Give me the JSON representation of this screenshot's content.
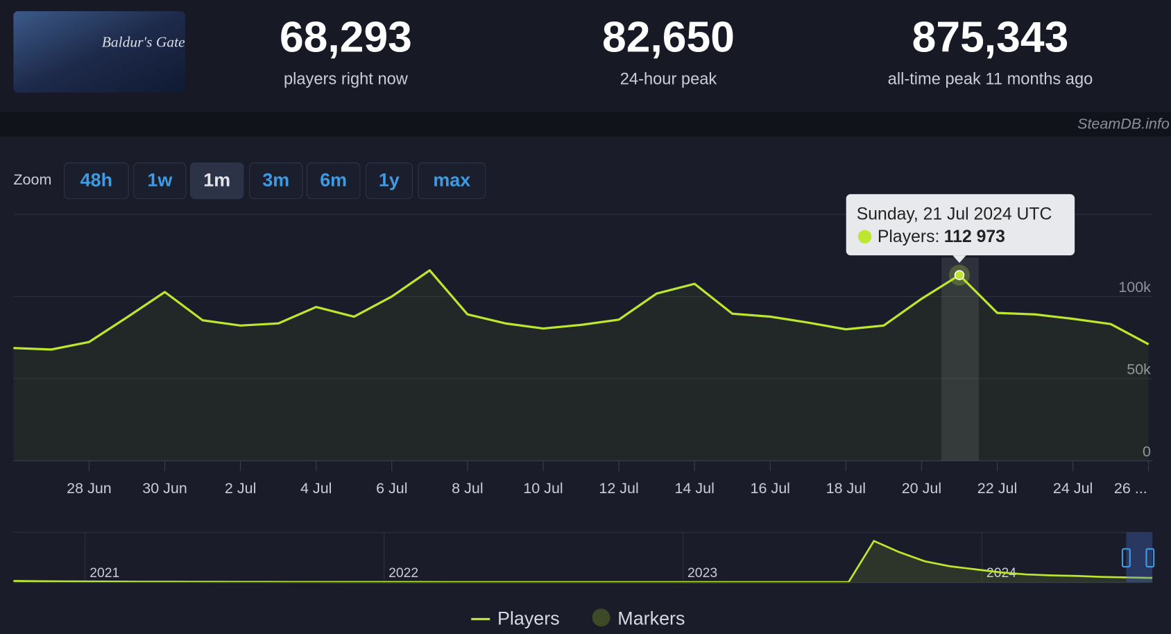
{
  "header": {
    "game_logo": "Baldur's Gate",
    "stats": [
      {
        "value": "68,293",
        "label": "players right now"
      },
      {
        "value": "82,650",
        "label": "24-hour peak"
      },
      {
        "value": "875,343",
        "label": "all-time peak 11 months ago"
      }
    ]
  },
  "watermark": "SteamDB.info",
  "zoom": {
    "label": "Zoom",
    "buttons": [
      "48h",
      "1w",
      "1m",
      "3m",
      "6m",
      "1y",
      "max"
    ],
    "selected": 2
  },
  "chart_data": {
    "type": "line",
    "categories": [
      null,
      null,
      "28 Jun",
      null,
      "30 Jun",
      null,
      "2 Jul",
      null,
      "4 Jul",
      null,
      "6 Jul",
      null,
      "8 Jul",
      null,
      "10 Jul",
      null,
      "12 Jul",
      null,
      "14 Jul",
      null,
      "16 Jul",
      null,
      "18 Jul",
      null,
      "20 Jul",
      null,
      "22 Jul",
      null,
      "24 Jul",
      null,
      "26 ..."
    ],
    "series": [
      {
        "name": "Players",
        "color": "#bde62f",
        "values": [
          68600,
          67700,
          72300,
          87300,
          102700,
          85500,
          82300,
          83600,
          93600,
          87700,
          100000,
          115900,
          89100,
          83600,
          80500,
          82700,
          85900,
          101800,
          107700,
          89500,
          87700,
          84100,
          80000,
          82300,
          98600,
          112973,
          90000,
          89100,
          86400,
          83200,
          70900
        ],
        "value_labels": [
          null,
          null,
          null,
          null,
          null,
          null,
          null,
          null,
          null,
          null,
          null,
          null,
          null,
          null,
          null,
          null,
          null,
          null,
          null,
          null,
          null,
          null,
          null,
          null,
          null,
          "112 973",
          null,
          null,
          null,
          null,
          null
        ]
      }
    ],
    "tooltip": {
      "title": "Sunday, 21 Jul 2024 UTC",
      "label": "Players:"
    },
    "ylim": [
      0,
      150000
    ],
    "yticks": [
      0,
      {
        "value": 50000,
        "label": "50k"
      },
      {
        "value": 100000,
        "label": "100k"
      }
    ],
    "grid": true,
    "legend": [
      "Players",
      "Markers"
    ],
    "marker_color": "#3d4a26",
    "navigator": {
      "xlim": [
        2020.76,
        2024.57
      ],
      "xticks": [
        2021,
        2022,
        2023,
        2024
      ],
      "ylim": [
        0,
        900000
      ],
      "values": [
        30000,
        25000,
        22000,
        20000,
        18000,
        16000,
        15000,
        14000,
        13000,
        12000,
        12000,
        11000,
        11000,
        10000,
        10000,
        10000,
        10000,
        9000,
        9000,
        9000,
        9000,
        9000,
        9000,
        9000,
        9000,
        9000,
        9000,
        9000,
        9000,
        9000,
        9000,
        9000,
        9000,
        9000,
        820000,
        600000,
        420000,
        320000,
        260000,
        200000,
        160000,
        140000,
        130000,
        110000,
        100000,
        90000
      ]
    }
  }
}
